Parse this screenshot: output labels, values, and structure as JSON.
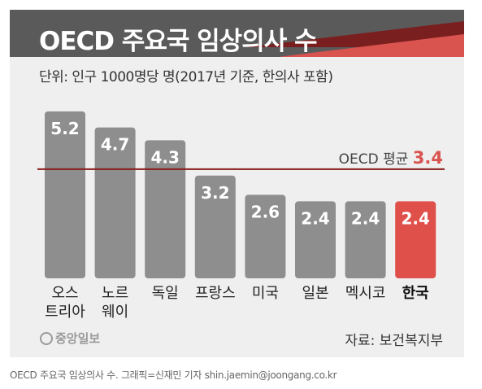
{
  "header": {
    "title": "OECD 주요국 임상의사 수",
    "bg_color": "#5a5a5a",
    "stripe_dark": "#7a1f1f",
    "stripe_light": "#d9534f"
  },
  "unit_note": "단위: 인구 1000명당 명(2017년 기준, 한의사 포함)",
  "chart_data": {
    "type": "bar",
    "title": "OECD 주요국 임상의사 수",
    "xlabel": "",
    "ylabel": "",
    "categories": [
      [
        "오스",
        "트리아"
      ],
      [
        "노르",
        "웨이"
      ],
      [
        "독일"
      ],
      [
        "프랑스"
      ],
      [
        "미국"
      ],
      [
        "일본"
      ],
      [
        "멕시코"
      ],
      [
        "한국"
      ]
    ],
    "values": [
      5.2,
      4.7,
      4.3,
      3.2,
      2.6,
      2.4,
      2.4,
      2.4
    ],
    "value_labels": [
      "5.2",
      "4.7",
      "4.3",
      "3.2",
      "2.6",
      "2.4",
      "2.4",
      "2.4"
    ],
    "highlight_index": 7,
    "bar_color": "#8e8e8e",
    "highlight_color": "#e0504a",
    "ylim": [
      0,
      5.83
    ],
    "reference_line": {
      "value": 3.4,
      "label_prefix": "OECD 평균",
      "label_value": "3.4",
      "line_color": "#8b1a1a",
      "value_color": "#d9534f"
    },
    "grid": false,
    "legend": "none"
  },
  "footer": {
    "logo_text": "중앙일보",
    "source": "자료: 보건복지부"
  },
  "caption": "OECD 주요국 임상의사 수. 그래픽=신재민 기자 shin.jaemin@joongang.co.kr"
}
